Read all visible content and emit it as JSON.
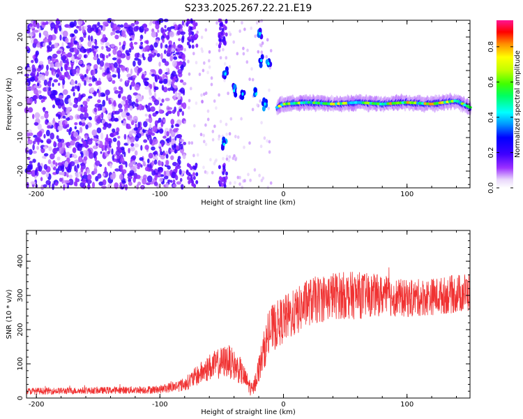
{
  "title": "S233.2025.267.22.21.E19",
  "chart_data": [
    {
      "type": "heatmap",
      "xlabel": "Height of straight line (km)",
      "ylabel": "Frequency (Hz)",
      "xlim": [
        -208,
        151
      ],
      "ylim": [
        -25,
        25
      ],
      "xticks": [
        -200,
        -100,
        0,
        100
      ],
      "yticks": [
        -20,
        -10,
        0,
        10,
        20
      ],
      "colorbar": {
        "label": "Normalized spectral amplitude",
        "range": [
          0,
          0.95
        ],
        "ticks": [
          0.0,
          0.2,
          0.4,
          0.6,
          0.8
        ]
      },
      "features": {
        "noise_region_x": [
          -208,
          -80
        ],
        "gap_region_x": [
          -80,
          -50
        ],
        "transition_region_x": [
          -50,
          -5
        ],
        "signal_line": {
          "x_range": [
            -5,
            151
          ],
          "frequency_hz": [
            [
              -5,
              -1
            ],
            [
              0,
              0
            ],
            [
              20,
              0.5
            ],
            [
              40,
              0
            ],
            [
              60,
              0.5
            ],
            [
              80,
              0
            ],
            [
              100,
              0.5
            ],
            [
              120,
              0
            ],
            [
              140,
              1
            ],
            [
              151,
              -1
            ]
          ],
          "peak_amplitude": 0.95
        },
        "strong_blobs": [
          {
            "x": -47,
            "y": 9
          },
          {
            "x": -48,
            "y": -12
          },
          {
            "x": -40,
            "y": 4
          },
          {
            "x": -33,
            "y": 3
          },
          {
            "x": -22,
            "y": 3
          },
          {
            "x": -19,
            "y": 21
          },
          {
            "x": -18,
            "y": 13
          },
          {
            "x": -12,
            "y": 12
          },
          {
            "x": -15,
            "y": 0
          }
        ]
      }
    },
    {
      "type": "line",
      "xlabel": "Height of straight line (km)",
      "ylabel": "SNR (10 * v/v)",
      "xlim": [
        -208,
        151
      ],
      "ylim": [
        0,
        490
      ],
      "xticks": [
        -200,
        -100,
        0,
        100
      ],
      "yticks": [
        0,
        100,
        200,
        300,
        400
      ],
      "series": [
        {
          "color": "#f03232",
          "envelope": [
            [
              -208,
              20,
              10
            ],
            [
              -150,
              22,
              10
            ],
            [
              -100,
              25,
              12
            ],
            [
              -80,
              40,
              20
            ],
            [
              -60,
              90,
              40
            ],
            [
              -45,
              110,
              50
            ],
            [
              -35,
              80,
              40
            ],
            [
              -25,
              20,
              20
            ],
            [
              -15,
              150,
              60
            ],
            [
              -10,
              200,
              70
            ],
            [
              0,
              230,
              70
            ],
            [
              10,
              250,
              70
            ],
            [
              20,
              280,
              70
            ],
            [
              40,
              300,
              70
            ],
            [
              60,
              300,
              70
            ],
            [
              80,
              300,
              60
            ],
            [
              100,
              290,
              55
            ],
            [
              130,
              300,
              55
            ],
            [
              151,
              310,
              60
            ]
          ]
        }
      ]
    }
  ]
}
